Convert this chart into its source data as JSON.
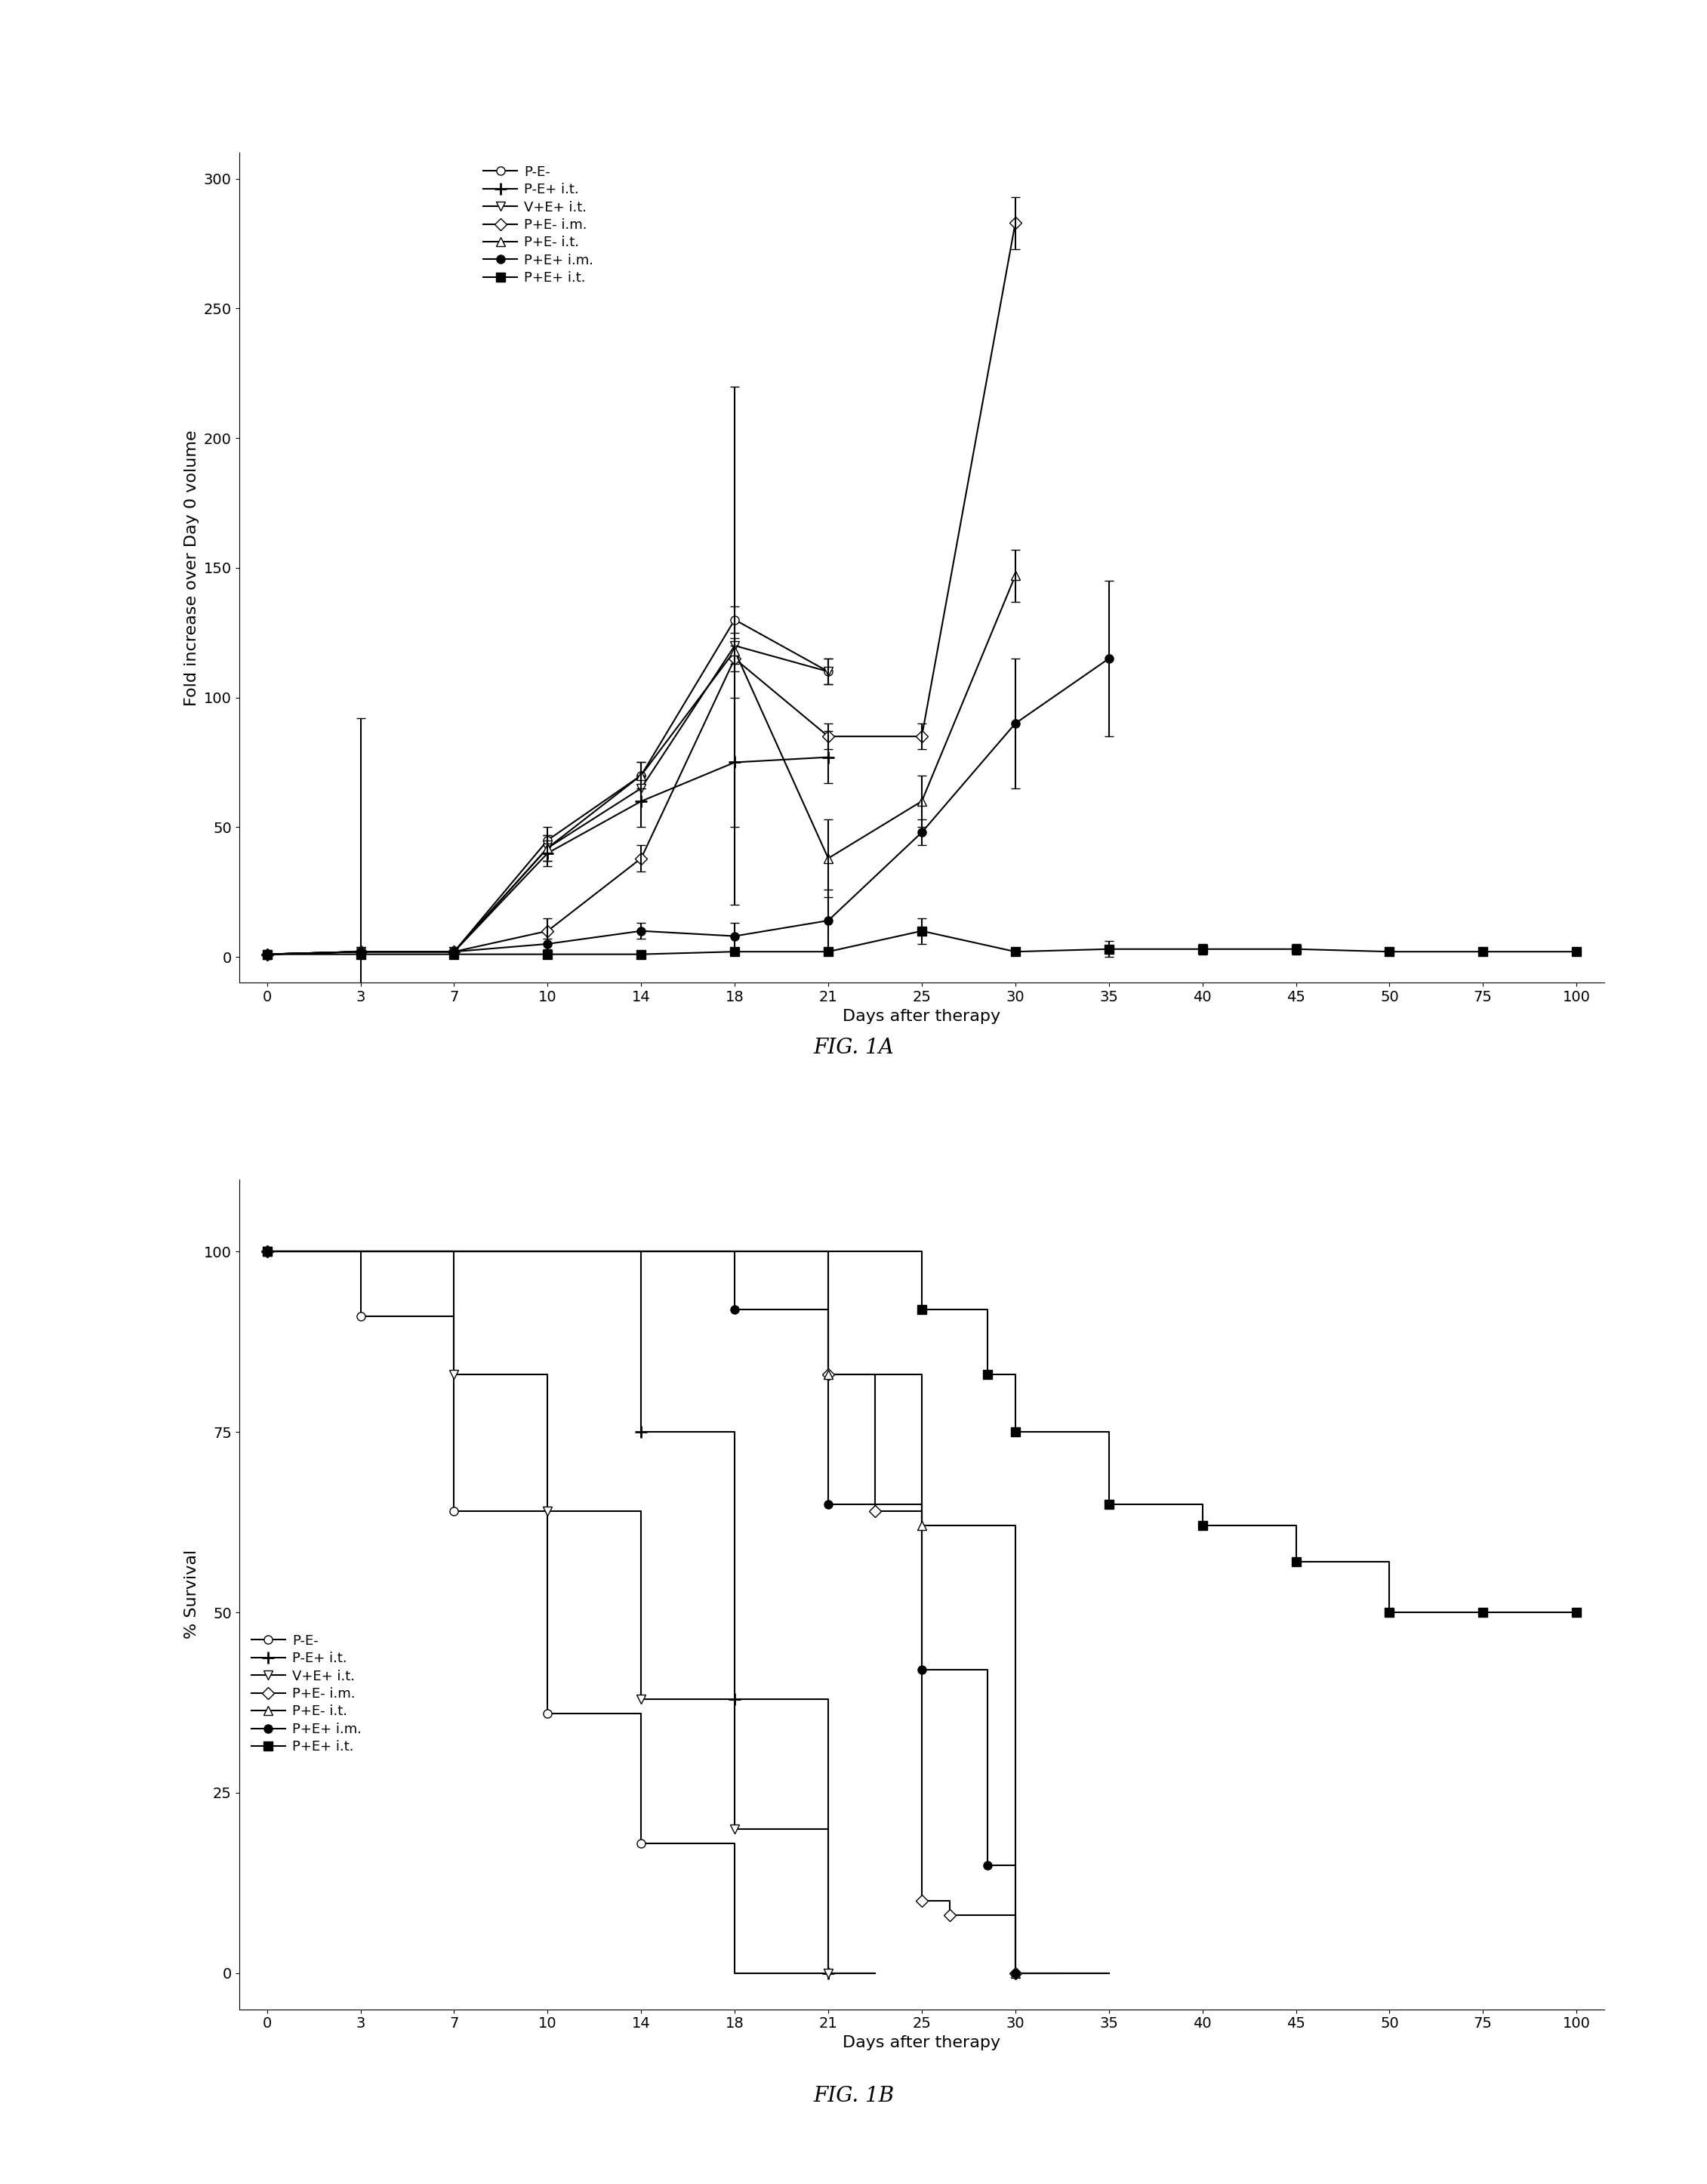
{
  "fig1a": {
    "title": "FIG. 1A",
    "xlabel": "Days after therapy",
    "ylabel": "Fold increase over Day 0 volume",
    "ylim": [
      -10,
      310
    ],
    "yticks": [
      0,
      50,
      100,
      150,
      200,
      250,
      300
    ],
    "xtick_labels": [
      "0",
      "3",
      "7",
      "10",
      "14",
      "18",
      "21",
      "25",
      "30",
      "35",
      "40",
      "45",
      "50",
      "75",
      "100"
    ],
    "series": [
      {
        "label": "P-E-",
        "marker": "o",
        "fillstyle": "none",
        "x_idx": [
          0,
          1,
          2,
          3,
          4,
          5,
          6
        ],
        "y": [
          1,
          2,
          2,
          45,
          70,
          130,
          110
        ],
        "yerr_low": [
          0,
          90,
          0,
          5,
          5,
          5,
          5
        ],
        "yerr_high": [
          0,
          90,
          0,
          5,
          5,
          5,
          5
        ]
      },
      {
        "label": "P-E+ i.t.",
        "marker": "+",
        "fillstyle": "full",
        "x_idx": [
          0,
          1,
          2,
          3,
          4,
          5,
          6
        ],
        "y": [
          1,
          2,
          2,
          40,
          60,
          75,
          77
        ],
        "yerr_low": [
          0,
          0,
          0,
          5,
          10,
          25,
          10
        ],
        "yerr_high": [
          0,
          0,
          0,
          5,
          10,
          25,
          10
        ]
      },
      {
        "label": "V+E+ i.t.",
        "marker": "v",
        "fillstyle": "none",
        "x_idx": [
          0,
          1,
          2,
          3,
          4,
          5,
          6
        ],
        "y": [
          1,
          2,
          2,
          42,
          65,
          120,
          110
        ],
        "yerr_low": [
          0,
          0,
          0,
          5,
          5,
          100,
          5
        ],
        "yerr_high": [
          0,
          0,
          0,
          5,
          5,
          100,
          5
        ]
      },
      {
        "label": "P+E- i.m.",
        "marker": "D",
        "fillstyle": "none",
        "x_idx": [
          0,
          1,
          2,
          3,
          4,
          5,
          6,
          7,
          8
        ],
        "y": [
          1,
          2,
          2,
          10,
          38,
          115,
          85,
          85,
          283
        ],
        "yerr_low": [
          0,
          0,
          0,
          5,
          5,
          5,
          5,
          5,
          10
        ],
        "yerr_high": [
          0,
          0,
          0,
          5,
          5,
          5,
          5,
          5,
          10
        ]
      },
      {
        "label": "P+E- i.t.",
        "marker": "^",
        "fillstyle": "none",
        "x_idx": [
          0,
          1,
          2,
          3,
          4,
          5,
          6,
          7,
          8
        ],
        "y": [
          1,
          2,
          2,
          42,
          70,
          118,
          38,
          60,
          147
        ],
        "yerr_low": [
          0,
          0,
          0,
          5,
          5,
          5,
          15,
          10,
          10
        ],
        "yerr_high": [
          0,
          0,
          0,
          5,
          5,
          5,
          15,
          10,
          10
        ]
      },
      {
        "label": "P+E+ i.m.",
        "marker": "o",
        "fillstyle": "full",
        "x_idx": [
          0,
          1,
          2,
          3,
          4,
          5,
          6,
          7,
          8,
          9
        ],
        "y": [
          1,
          2,
          2,
          5,
          10,
          8,
          14,
          48,
          90,
          115
        ],
        "yerr_low": [
          0,
          0,
          0,
          2,
          3,
          5,
          12,
          5,
          25,
          30
        ],
        "yerr_high": [
          0,
          0,
          0,
          2,
          3,
          5,
          12,
          5,
          25,
          30
        ]
      },
      {
        "label": "P+E+ i.t.",
        "marker": "s",
        "fillstyle": "full",
        "x_idx": [
          0,
          1,
          2,
          3,
          4,
          5,
          6,
          7,
          8,
          9,
          10,
          11,
          12,
          13,
          14
        ],
        "y": [
          1,
          1,
          1,
          1,
          1,
          2,
          2,
          10,
          2,
          3,
          3,
          3,
          2,
          2,
          2
        ],
        "yerr_low": [
          0,
          0,
          0,
          0,
          0,
          1,
          1,
          5,
          1,
          3,
          2,
          2,
          1,
          1,
          1
        ],
        "yerr_high": [
          0,
          0,
          0,
          0,
          0,
          1,
          1,
          5,
          1,
          3,
          2,
          2,
          1,
          1,
          1
        ]
      }
    ]
  },
  "fig1b": {
    "title": "FIG. 1B",
    "xlabel": "Days after therapy",
    "ylabel": "% Survival",
    "ylim": [
      -5,
      110
    ],
    "yticks": [
      0,
      25,
      50,
      75,
      100
    ],
    "xtick_labels": [
      "0",
      "3",
      "7",
      "10",
      "14",
      "18",
      "21",
      "25",
      "30",
      "35",
      "40",
      "45",
      "50",
      "75",
      "100"
    ],
    "series": [
      {
        "label": "P-E-",
        "marker": "o",
        "fillstyle": "none",
        "steps_xi": [
          0,
          1,
          1,
          2,
          2,
          3,
          3,
          4,
          4,
          5,
          5,
          6
        ],
        "steps_y": [
          100,
          100,
          91,
          91,
          64,
          64,
          36,
          36,
          18,
          18,
          0,
          0
        ]
      },
      {
        "label": "P-E+ i.t.",
        "marker": "+",
        "fillstyle": "full",
        "steps_xi": [
          0,
          4,
          4,
          5,
          5,
          6,
          6,
          6.5
        ],
        "steps_y": [
          100,
          100,
          75,
          75,
          38,
          38,
          0,
          0
        ]
      },
      {
        "label": "V+E+ i.t.",
        "marker": "v",
        "fillstyle": "none",
        "steps_xi": [
          0,
          2,
          2,
          3,
          3,
          4,
          4,
          5,
          5,
          6,
          6,
          6.5
        ],
        "steps_y": [
          100,
          100,
          83,
          83,
          64,
          64,
          38,
          38,
          20,
          20,
          0,
          0
        ]
      },
      {
        "label": "P+E- i.m.",
        "marker": "D",
        "fillstyle": "none",
        "steps_xi": [
          0,
          6,
          6,
          6.5,
          6.5,
          7,
          7,
          7.3,
          7.3,
          8,
          8,
          8.5
        ],
        "steps_y": [
          100,
          100,
          83,
          83,
          64,
          64,
          10,
          10,
          8,
          8,
          0,
          0
        ]
      },
      {
        "label": "P+E- i.t.",
        "marker": "^",
        "fillstyle": "none",
        "steps_xi": [
          0,
          6,
          6,
          7,
          7,
          8,
          8,
          9
        ],
        "steps_y": [
          100,
          100,
          83,
          83,
          62,
          62,
          0,
          0
        ]
      },
      {
        "label": "P+E+ i.m.",
        "marker": "o",
        "fillstyle": "full",
        "steps_xi": [
          0,
          5,
          5,
          6,
          6,
          7,
          7,
          7.7,
          7.7,
          8,
          8,
          9
        ],
        "steps_y": [
          100,
          100,
          92,
          92,
          65,
          65,
          42,
          42,
          15,
          15,
          0,
          0
        ]
      },
      {
        "label": "P+E+ i.t.",
        "marker": "s",
        "fillstyle": "full",
        "steps_xi": [
          0,
          7,
          7,
          7.7,
          7.7,
          8,
          8,
          9,
          9,
          10,
          10,
          11,
          11,
          12,
          12,
          13,
          14
        ],
        "steps_y": [
          100,
          100,
          92,
          92,
          83,
          83,
          75,
          75,
          65,
          65,
          62,
          62,
          57,
          57,
          50,
          50,
          50
        ]
      }
    ],
    "markers": [
      {
        "label": "P-E-",
        "marker": "o",
        "fillstyle": "none",
        "xi": [
          0,
          1,
          2,
          3,
          4
        ],
        "y": [
          100,
          91,
          64,
          36,
          18
        ]
      },
      {
        "label": "P-E+ i.t.",
        "marker": "+",
        "fillstyle": "full",
        "xi": [
          0,
          4,
          5,
          6
        ],
        "y": [
          100,
          75,
          38,
          0
        ]
      },
      {
        "label": "V+E+ i.t.",
        "marker": "v",
        "fillstyle": "none",
        "xi": [
          0,
          2,
          3,
          4,
          5,
          6
        ],
        "y": [
          100,
          83,
          64,
          38,
          20,
          0
        ]
      },
      {
        "label": "P+E- i.m.",
        "marker": "D",
        "fillstyle": "none",
        "xi": [
          0,
          6,
          6.5,
          7,
          7.3,
          8
        ],
        "y": [
          100,
          83,
          64,
          10,
          8,
          0
        ]
      },
      {
        "label": "P+E- i.t.",
        "marker": "^",
        "fillstyle": "none",
        "xi": [
          0,
          6,
          7,
          8
        ],
        "y": [
          100,
          83,
          62,
          0
        ]
      },
      {
        "label": "P+E+ i.m.",
        "marker": "o",
        "fillstyle": "full",
        "xi": [
          0,
          5,
          6,
          7,
          7.7,
          8
        ],
        "y": [
          100,
          92,
          65,
          42,
          15,
          0
        ]
      },
      {
        "label": "P+E+ i.t.",
        "marker": "s",
        "fillstyle": "full",
        "xi": [
          0,
          7,
          7.7,
          8,
          9,
          10,
          11,
          12,
          13,
          14
        ],
        "y": [
          100,
          92,
          83,
          75,
          65,
          62,
          57,
          50,
          50,
          50
        ]
      }
    ]
  },
  "font_size": 16,
  "tick_font_size": 14,
  "legend_font_size": 13,
  "marker_size": 8,
  "linewidth": 1.5
}
